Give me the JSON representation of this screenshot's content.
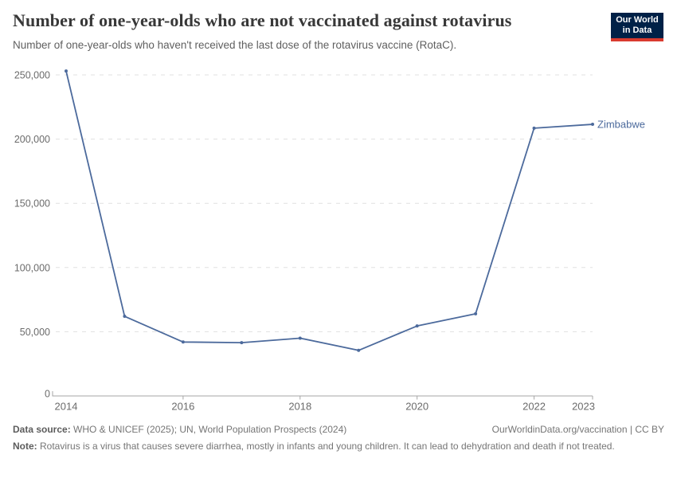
{
  "header": {
    "title": "Number of one-year-olds who are not vaccinated against rotavirus",
    "subtitle": "Number of one-year-olds who haven't received the last dose of the rotavirus vaccine (RotaC).",
    "logo": {
      "line1": "Our World",
      "line2": "in Data"
    }
  },
  "chart_data": {
    "type": "line",
    "title": "Number of one-year-olds who are not vaccinated against rotavirus",
    "xlabel": "",
    "ylabel": "",
    "xlim": [
      2014,
      2023
    ],
    "ylim": [
      0,
      250000
    ],
    "grid": "horizontal-dashed",
    "legend_position": "end-of-line-label",
    "x": [
      2014,
      2015,
      2016,
      2017,
      2018,
      2019,
      2020,
      2021,
      2022,
      2023
    ],
    "series": [
      {
        "name": "Zimbabwe",
        "color": "#4C6A9C",
        "values": [
          253000,
          62000,
          42000,
          41500,
          45000,
          35500,
          54500,
          64000,
          208500,
          211500
        ]
      }
    ],
    "x_ticks": [
      {
        "value": 2014,
        "label": "2014"
      },
      {
        "value": 2016,
        "label": "2016"
      },
      {
        "value": 2018,
        "label": "2018"
      },
      {
        "value": 2020,
        "label": "2020"
      },
      {
        "value": 2022,
        "label": "2022"
      },
      {
        "value": 2023,
        "label": "2023"
      }
    ],
    "y_ticks": [
      {
        "value": 0,
        "label": "0"
      },
      {
        "value": 50000,
        "label": "50,000"
      },
      {
        "value": 100000,
        "label": "100,000"
      },
      {
        "value": 150000,
        "label": "150,000"
      },
      {
        "value": 200000,
        "label": "200,000"
      },
      {
        "value": 250000,
        "label": "250,000"
      }
    ],
    "end_label": "Zimbabwe"
  },
  "footer": {
    "datasource_label": "Data source:",
    "datasource_text": " WHO & UNICEF (2025); UN, World Population Prospects (2024)",
    "link": "OurWorldinData.org/vaccination | CC BY",
    "note_label": "Note:",
    "note_text": " Rotavirus is a virus that causes severe diarrhea, mostly in infants and young children. It can lead to dehydration and death if not treated."
  },
  "colors": {
    "line": "#4C6A9C",
    "grid": "#e0e0e0",
    "axis": "#a6a6a6",
    "tick_text": "#6b6b6b",
    "logo_navy": "#002147",
    "logo_red": "#d93b2f"
  }
}
